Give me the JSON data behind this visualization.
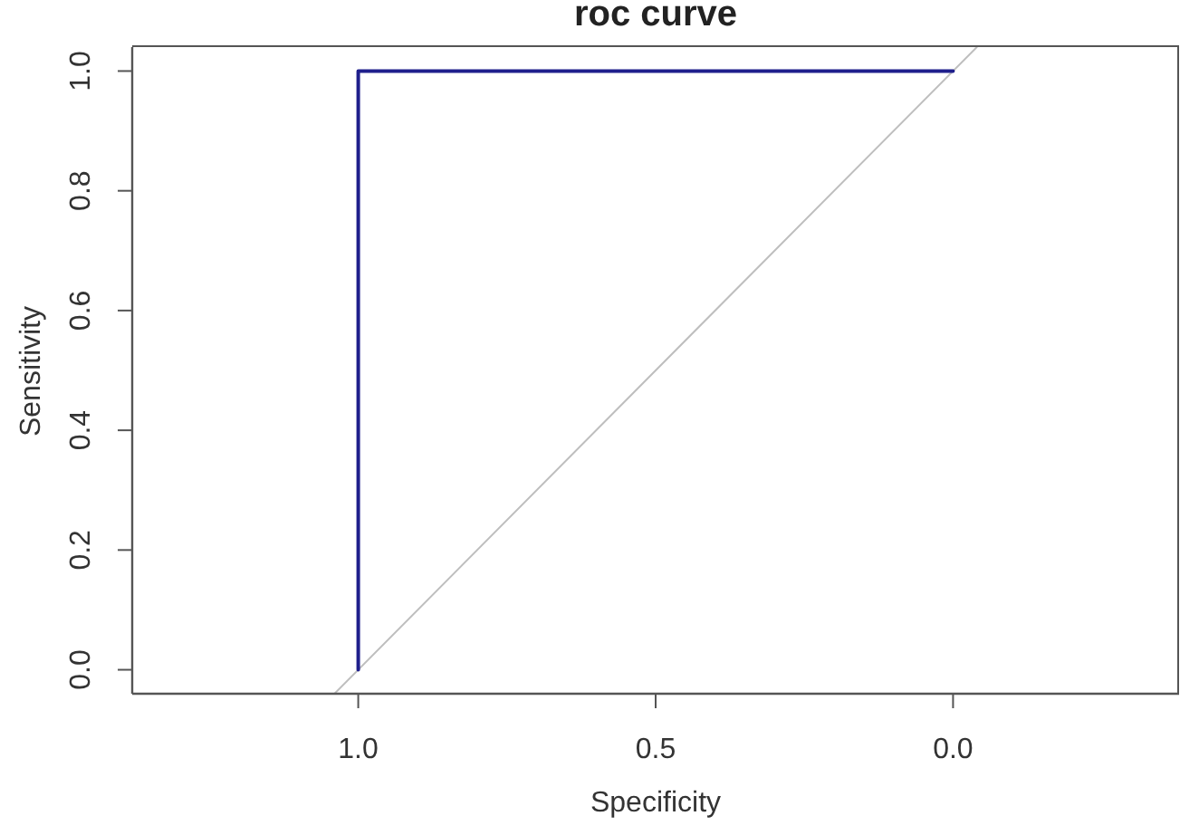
{
  "chart_data": {
    "type": "line",
    "title": "roc curve",
    "xlabel": "Specificity",
    "ylabel": "Sensitivity",
    "xlim": [
      1.38,
      -0.38
    ],
    "xticks": [
      {
        "value": 1,
        "label": "1.0"
      },
      0.5,
      {
        "value": 0,
        "label": "0.0"
      }
    ],
    "ylim": [
      -0.04,
      1.04
    ],
    "yticks": [
      {
        "value": 0,
        "label": "0.0"
      },
      0.2,
      0.4,
      0.6,
      0.8,
      {
        "value": 1,
        "label": "1.0"
      }
    ],
    "series": [
      {
        "color": "#bebebe",
        "x": [
          1.04,
          -0.04
        ],
        "values": [
          -0.04,
          1.04
        ]
      },
      {
        "color": "#1f1f8c",
        "x": [
          1,
          1,
          0
        ],
        "values": [
          0,
          1,
          1
        ]
      }
    ]
  }
}
